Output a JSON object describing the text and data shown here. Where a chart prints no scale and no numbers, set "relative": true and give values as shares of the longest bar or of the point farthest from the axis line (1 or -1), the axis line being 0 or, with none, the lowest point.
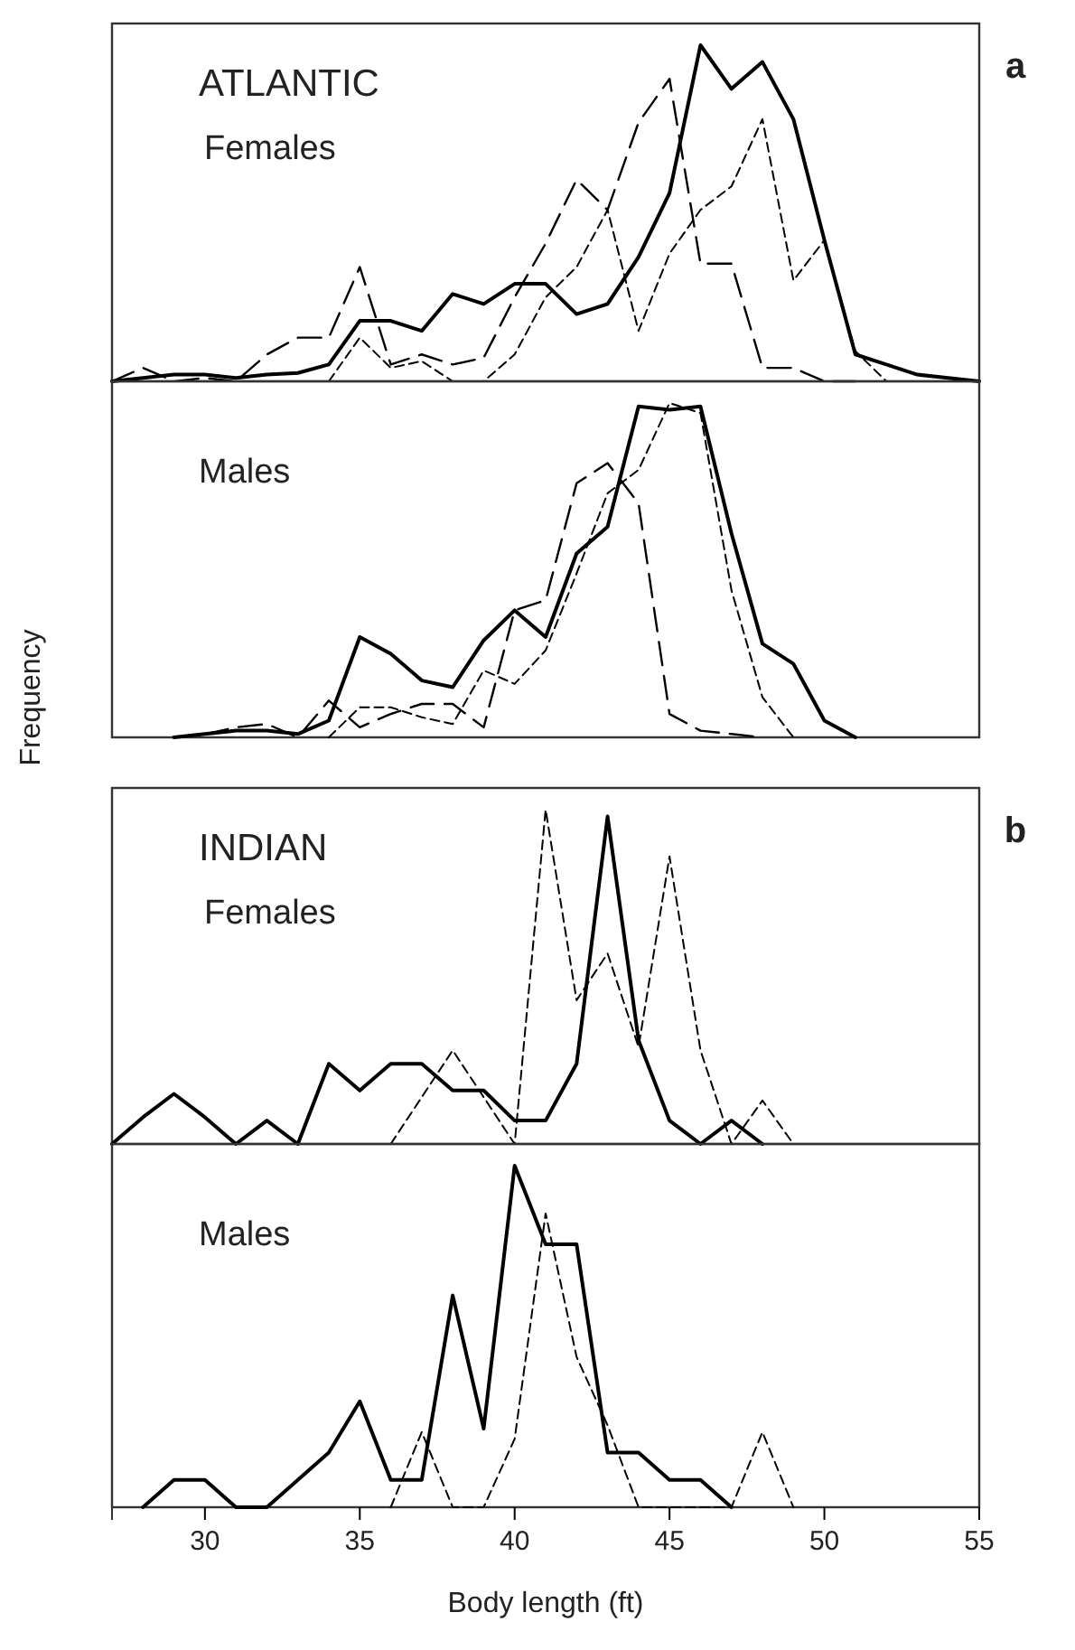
{
  "chart_data": [
    {
      "type": "line",
      "title": "ATLANTIC",
      "subtitle": "Females",
      "annotations": [
        "a"
      ],
      "relative": true,
      "xlim": [
        27,
        55
      ],
      "tick_labels": false,
      "grid": false,
      "marker": "none",
      "series": [
        {
          "color": "#000000",
          "line_style": "solid",
          "x": [
            27,
            28,
            29,
            30,
            31,
            32,
            33,
            34,
            35,
            36,
            37,
            38,
            39,
            40,
            41,
            42,
            43,
            44,
            45,
            46,
            47,
            48,
            49,
            50,
            51,
            52,
            53,
            54,
            55
          ],
          "values": [
            0,
            0.01,
            0.02,
            0.02,
            0.01,
            0.02,
            0.025,
            0.05,
            0.18,
            0.18,
            0.15,
            0.26,
            0.23,
            0.29,
            0.29,
            0.2,
            0.23,
            0.37,
            0.56,
            1,
            0.87,
            0.95,
            0.78,
            0.42,
            0.08,
            0.05,
            0.02,
            0.01,
            0
          ]
        },
        {
          "color": "#000000",
          "line_style": "dashed",
          "x": [
            27,
            28,
            29,
            30,
            31,
            32,
            33,
            34,
            35,
            36,
            37,
            38,
            39,
            40,
            41,
            42,
            43,
            44,
            45,
            46,
            47,
            48,
            49,
            50,
            51
          ],
          "values": [
            0,
            0.04,
            0,
            0.01,
            0,
            0.08,
            0.13,
            0.13,
            0.34,
            0.05,
            0.08,
            0.05,
            0.07,
            0.25,
            0.41,
            0.6,
            0.51,
            0.77,
            0.9,
            0.35,
            0.35,
            0.04,
            0.04,
            0,
            0
          ]
        },
        {
          "color": "#000000",
          "line_style": "dotted",
          "x": [
            34,
            35,
            36,
            37,
            38,
            39,
            40,
            41,
            42,
            43,
            44,
            45,
            46,
            47,
            48,
            49,
            50,
            51,
            52
          ],
          "values": [
            0,
            0.13,
            0.04,
            0.06,
            0,
            0,
            0.08,
            0.25,
            0.34,
            0.51,
            0.15,
            0.38,
            0.51,
            0.58,
            0.78,
            0.3,
            0.42,
            0.09,
            0
          ]
        }
      ]
    },
    {
      "type": "line",
      "title": "Males",
      "ylabel": "Frequency",
      "relative": true,
      "xlim": [
        27,
        55
      ],
      "tick_labels": false,
      "grid": false,
      "marker": "none",
      "series": [
        {
          "color": "#000000",
          "line_style": "solid",
          "x": [
            29,
            30,
            31,
            32,
            33,
            34,
            35,
            36,
            37,
            38,
            39,
            40,
            41,
            42,
            43,
            44,
            45,
            46,
            47,
            48,
            49,
            50,
            51
          ],
          "values": [
            0,
            0.01,
            0.02,
            0.02,
            0.01,
            0.05,
            0.3,
            0.25,
            0.17,
            0.15,
            0.29,
            0.38,
            0.3,
            0.55,
            0.63,
            0.99,
            0.98,
            0.99,
            0.61,
            0.28,
            0.22,
            0.05,
            0
          ]
        },
        {
          "color": "#000000",
          "line_style": "dashed",
          "x": [
            30,
            31,
            32,
            33,
            34,
            35,
            36,
            37,
            38,
            39,
            40,
            41,
            42,
            43,
            44,
            45,
            46,
            47,
            48
          ],
          "values": [
            0.01,
            0.03,
            0.04,
            0,
            0.11,
            0.03,
            0.07,
            0.1,
            0.1,
            0.03,
            0.38,
            0.41,
            0.76,
            0.82,
            0.7,
            0.07,
            0.02,
            0.01,
            0
          ]
        },
        {
          "color": "#000000",
          "line_style": "dotted",
          "x": [
            34,
            35,
            36,
            37,
            38,
            39,
            40,
            41,
            42,
            43,
            44,
            45,
            46,
            47,
            48,
            49
          ],
          "values": [
            0,
            0.09,
            0.09,
            0.06,
            0.04,
            0.2,
            0.16,
            0.26,
            0.49,
            0.73,
            0.8,
            1,
            0.97,
            0.44,
            0.12,
            0
          ]
        }
      ]
    },
    {
      "type": "line",
      "title": "INDIAN",
      "subtitle": "Females",
      "annotations": [
        "b"
      ],
      "relative": true,
      "xlim": [
        27,
        55
      ],
      "tick_labels": false,
      "grid": false,
      "marker": "none",
      "series": [
        {
          "color": "#000000",
          "line_style": "solid",
          "x": [
            27,
            28,
            29,
            30,
            31,
            32,
            33,
            34,
            35,
            36,
            37,
            38,
            39,
            40,
            41,
            42,
            43,
            44,
            45,
            46,
            47,
            48
          ],
          "values": [
            0,
            0.08,
            0.15,
            0.08,
            0,
            0.07,
            0,
            0.24,
            0.16,
            0.24,
            0.24,
            0.16,
            0.16,
            0.07,
            0.07,
            0.24,
            0.98,
            0.31,
            0.07,
            0,
            0.07,
            0
          ]
        },
        {
          "color": "#000000",
          "line_style": "dotted",
          "x": [
            36,
            37,
            38,
            39,
            40,
            41,
            42,
            43,
            44,
            45,
            46,
            47,
            48,
            49
          ],
          "values": [
            0,
            0.14,
            0.28,
            0.14,
            0,
            1,
            0.43,
            0.57,
            0.29,
            0.86,
            0.28,
            0,
            0.13,
            0
          ]
        }
      ]
    },
    {
      "type": "line",
      "title": "Males",
      "xlabel": "Body length (ft)",
      "relative": true,
      "xlim": [
        27,
        55
      ],
      "xticks": [
        30,
        35,
        40,
        45,
        50,
        55
      ],
      "tick_labels": "x",
      "grid": false,
      "marker": "none",
      "series": [
        {
          "color": "#000000",
          "line_style": "solid",
          "x": [
            28,
            29,
            30,
            31,
            32,
            33,
            34,
            35,
            36,
            37,
            38,
            39,
            40,
            41,
            42,
            43,
            44,
            45,
            46,
            47
          ],
          "values": [
            0,
            0.08,
            0.08,
            0,
            0,
            0.08,
            0.16,
            0.31,
            0.08,
            0.08,
            0.62,
            0.23,
            1,
            0.77,
            0.77,
            0.16,
            0.16,
            0.08,
            0.08,
            0
          ]
        },
        {
          "color": "#000000",
          "line_style": "dotted",
          "x": [
            36,
            37,
            38,
            39,
            40,
            41,
            42,
            43,
            44,
            45,
            46,
            47,
            48,
            49
          ],
          "values": [
            0,
            0.22,
            0,
            0,
            0.2,
            0.86,
            0.44,
            0.24,
            0,
            0,
            0,
            0,
            0.22,
            0
          ]
        }
      ]
    }
  ]
}
